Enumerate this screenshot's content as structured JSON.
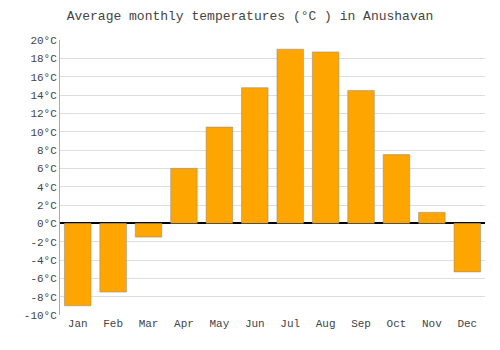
{
  "chart_data": {
    "type": "bar",
    "title": "Average monthly temperatures (°C ) in Anushavan",
    "categories": [
      "Jan",
      "Feb",
      "Mar",
      "Apr",
      "May",
      "Jun",
      "Jul",
      "Aug",
      "Sep",
      "Oct",
      "Nov",
      "Dec"
    ],
    "values": [
      -9.0,
      -7.5,
      -1.5,
      6.0,
      10.5,
      14.8,
      19.0,
      18.7,
      14.5,
      7.5,
      1.2,
      -5.3
    ],
    "color": "#FFA500",
    "ylim": [
      -10,
      20
    ],
    "yticks": [
      {
        "value": -10,
        "label": "-10°C"
      },
      {
        "value": -8,
        "label": "-8°C"
      },
      {
        "value": -6,
        "label": "-6°C"
      },
      {
        "value": -4,
        "label": "-4°C"
      },
      {
        "value": -2,
        "label": "-2°C"
      },
      {
        "value": 0,
        "label": "0°C"
      },
      {
        "value": 2,
        "label": "2°C"
      },
      {
        "value": 4,
        "label": "4°C"
      },
      {
        "value": 6,
        "label": "6°C"
      },
      {
        "value": 8,
        "label": "8°C"
      },
      {
        "value": 10,
        "label": "10°C"
      },
      {
        "value": 12,
        "label": "12°C"
      },
      {
        "value": 14,
        "label": "14°C"
      },
      {
        "value": 16,
        "label": "16°C"
      },
      {
        "value": 18,
        "label": "18°C"
      },
      {
        "value": 20,
        "label": "20°C"
      }
    ],
    "grid": true
  }
}
